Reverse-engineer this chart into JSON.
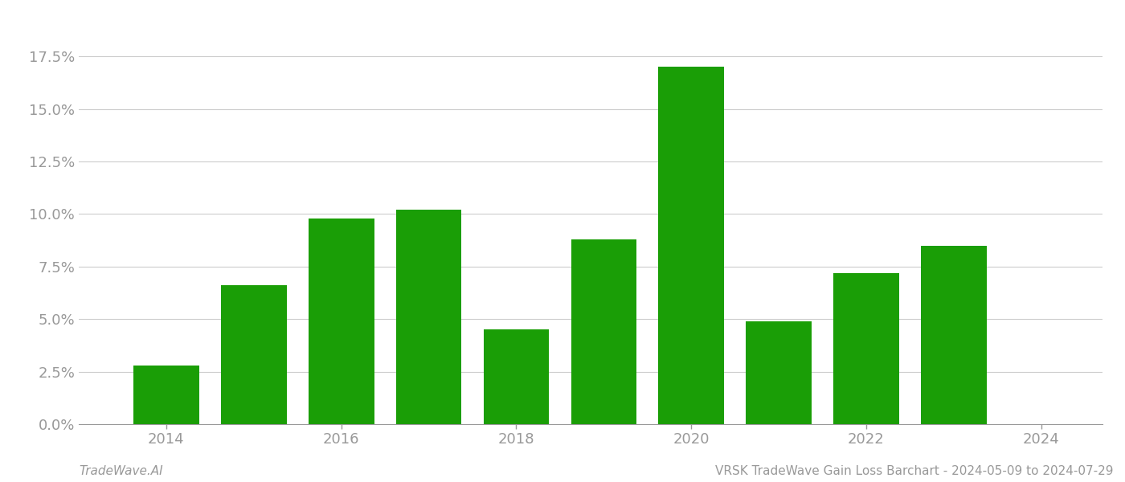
{
  "years": [
    2014,
    2015,
    2016,
    2017,
    2018,
    2019,
    2020,
    2021,
    2022,
    2023
  ],
  "values": [
    0.028,
    0.066,
    0.098,
    0.102,
    0.045,
    0.088,
    0.17,
    0.049,
    0.072,
    0.085
  ],
  "bar_color": "#1a9e06",
  "footer_left": "TradeWave.AI",
  "footer_right": "VRSK TradeWave Gain Loss Barchart - 2024-05-09 to 2024-07-29",
  "ylim": [
    0,
    0.195
  ],
  "yticks": [
    0.0,
    0.025,
    0.05,
    0.075,
    0.1,
    0.125,
    0.15,
    0.175
  ],
  "background_color": "#ffffff",
  "grid_color": "#cccccc",
  "tick_color": "#999999",
  "label_color": "#999999",
  "bar_width": 0.75,
  "xlim_left": 2013.0,
  "xlim_right": 2024.7,
  "xticks": [
    2014,
    2016,
    2018,
    2020,
    2022,
    2024
  ],
  "footer_fontsize": 11,
  "tick_fontsize": 13
}
